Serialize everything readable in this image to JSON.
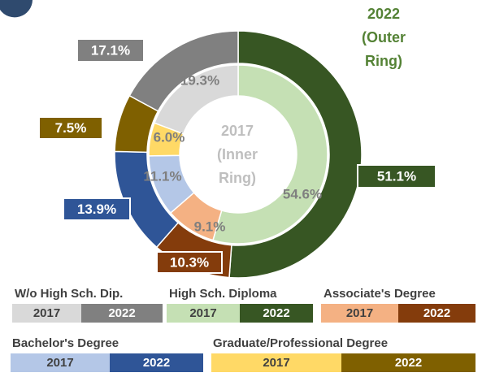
{
  "chart_data": {
    "type": "double-donut",
    "outer_title": [
      "2022",
      "(Outer",
      "Ring)"
    ],
    "inner_title": [
      "2017",
      "(Inner",
      "Ring)"
    ],
    "categories": [
      "High Sch. Diploma",
      "Associate's Degree",
      "Bachelor's Degree",
      "Graduate/Professional Degree",
      "W/o High Sch. Dip."
    ],
    "series": [
      {
        "name": "2017",
        "ring": "inner",
        "values": [
          54.6,
          9.1,
          11.1,
          6.0,
          19.3
        ],
        "value_labels": [
          "54.6%",
          "9.1%",
          "11.1%",
          "6.0%",
          "19.3%"
        ],
        "colors": [
          "#c5e0b4",
          "#f4b183",
          "#b4c7e7",
          "#ffd966",
          "#d9d9d9"
        ]
      },
      {
        "name": "2022",
        "ring": "outer",
        "values": [
          51.1,
          10.3,
          13.9,
          7.5,
          17.1
        ],
        "value_labels": [
          "51.1%",
          "10.3%",
          "13.9%",
          "7.5%",
          "17.1%"
        ],
        "colors": [
          "#375623",
          "#843c0c",
          "#2f5597",
          "#7f6000",
          "#808080"
        ]
      }
    ]
  }
}
